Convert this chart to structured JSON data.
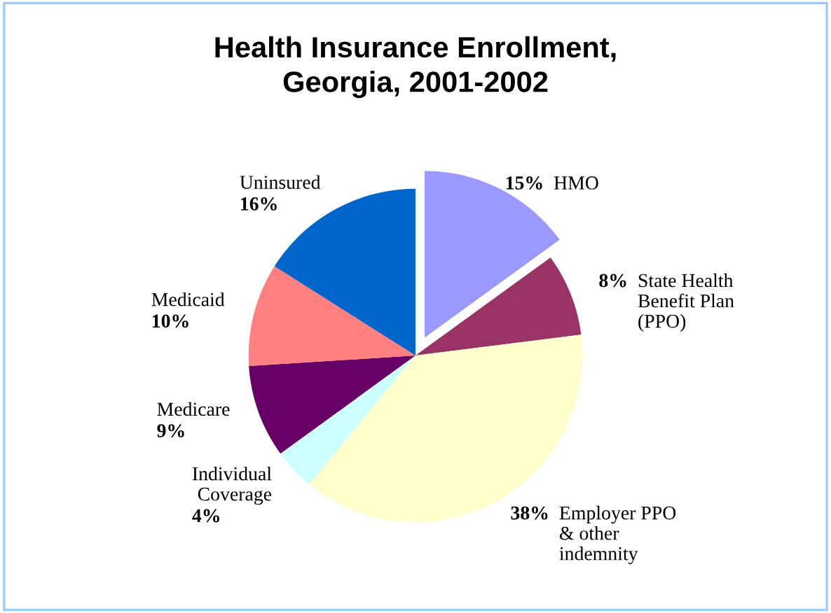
{
  "chart_data": {
    "type": "pie",
    "title": "Health Insurance Enrollment,\nGeorgia, 2001-2002",
    "categories": [
      "HMO",
      "State Health Benefit Plan (PPO)",
      "Employer PPO & other indemnity",
      "Individual Coverage",
      "Medicare",
      "Medicaid",
      "Uninsured"
    ],
    "values": [
      15,
      8,
      38,
      4,
      9,
      10,
      16
    ],
    "value_labels": [
      "15%",
      "8%",
      "38%",
      "4%",
      "9%",
      "10%",
      "16%"
    ],
    "colors": [
      "#9999ff",
      "#993366",
      "#ffffcc",
      "#ccffff",
      "#660066",
      "#ff8080",
      "#0066cc"
    ]
  }
}
